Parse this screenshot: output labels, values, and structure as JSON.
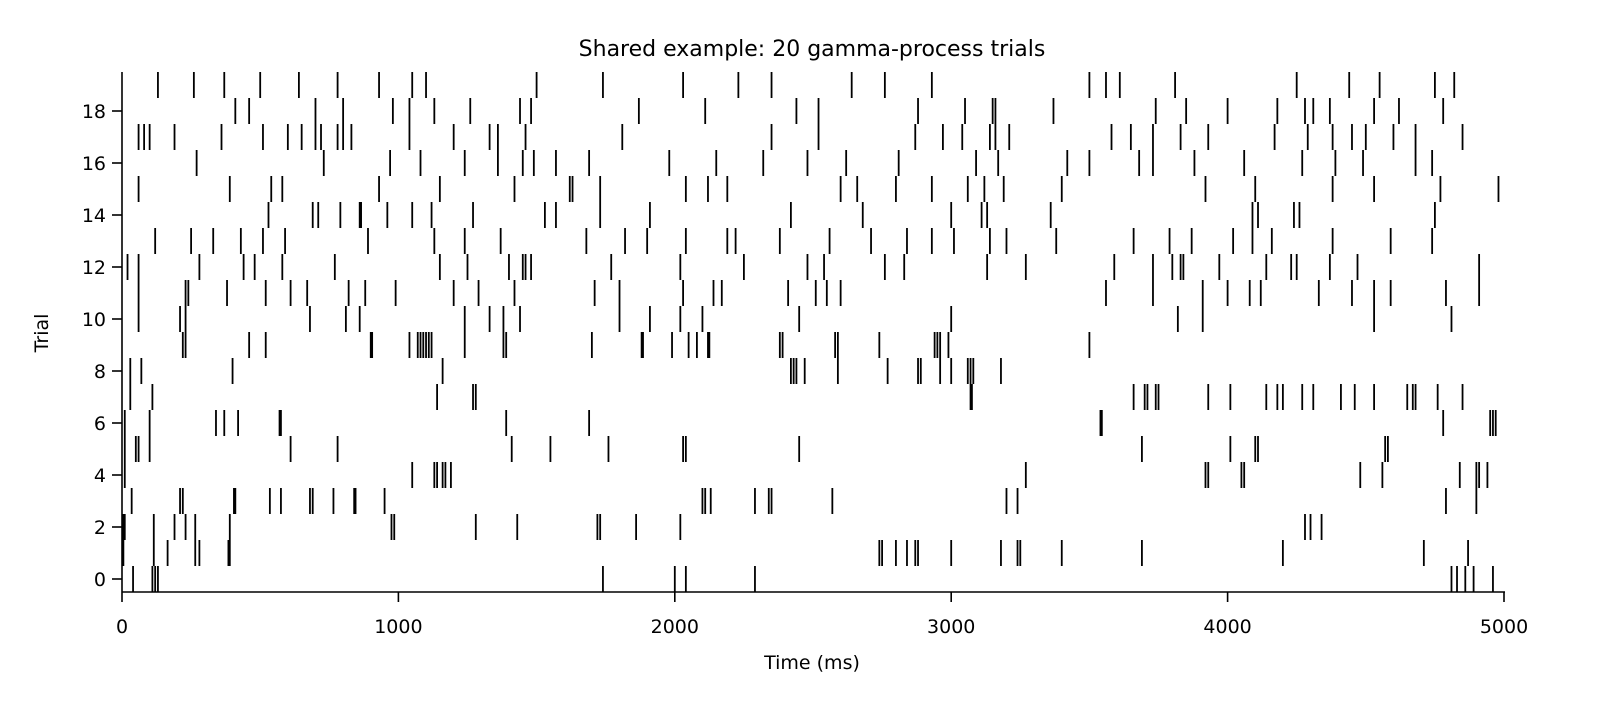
{
  "chart_data": {
    "type": "raster",
    "title": "Shared example: 20 gamma-process trials",
    "xlabel": "Time (ms)",
    "ylabel": "Trial",
    "xlim": [
      0,
      5000
    ],
    "ylim": [
      -0.5,
      19.5
    ],
    "xticks": [
      0,
      1000,
      2000,
      3000,
      4000,
      5000
    ],
    "yticks": [
      0,
      2,
      4,
      6,
      8,
      10,
      12,
      14,
      16,
      18
    ],
    "grid": false,
    "legend": null,
    "trials": [
      {
        "trial": 0,
        "spikes": [
          40,
          110,
          120,
          130,
          1740,
          2000,
          2040,
          2290,
          4810,
          4830,
          4860,
          4890,
          4960
        ]
      },
      {
        "trial": 1,
        "spikes": [
          5,
          115,
          165,
          265,
          280,
          385,
          390,
          2740,
          2750,
          2800,
          2840,
          2870,
          2880,
          3000,
          3180,
          3240,
          3250,
          3400,
          3690,
          4200,
          4710,
          4870
        ]
      },
      {
        "trial": 2,
        "spikes": [
          5,
          10,
          115,
          190,
          230,
          265,
          390,
          975,
          985,
          1280,
          1430,
          1720,
          1730,
          1860,
          2020,
          4280,
          4300,
          4340
        ]
      },
      {
        "trial": 3,
        "spikes": [
          35,
          210,
          220,
          405,
          410,
          535,
          575,
          680,
          690,
          765,
          840,
          845,
          950,
          2100,
          2110,
          2130,
          2290,
          2340,
          2350,
          2570,
          3200,
          3240,
          4790,
          4900
        ]
      },
      {
        "trial": 4,
        "spikes": [
          10,
          1050,
          1130,
          1140,
          1160,
          1170,
          1190,
          3270,
          3920,
          3930,
          4050,
          4060,
          4480,
          4560,
          4840,
          4900,
          4910,
          4940
        ]
      },
      {
        "trial": 5,
        "spikes": [
          10,
          50,
          60,
          100,
          610,
          780,
          1410,
          1550,
          1760,
          2030,
          2040,
          2450,
          3690,
          4010,
          4100,
          4110,
          4570,
          4580
        ]
      },
      {
        "trial": 6,
        "spikes": [
          10,
          100,
          340,
          370,
          420,
          570,
          575,
          1390,
          1690,
          3540,
          3545,
          4780,
          4950,
          4960,
          4970
        ]
      },
      {
        "trial": 7,
        "spikes": [
          30,
          110,
          1140,
          1270,
          1280,
          3070,
          3075,
          3660,
          3700,
          3710,
          3740,
          3750,
          3930,
          4010,
          4140,
          4180,
          4200,
          4270,
          4310,
          4410,
          4460,
          4530,
          4650,
          4670,
          4680,
          4760,
          4850
        ]
      },
      {
        "trial": 8,
        "spikes": [
          30,
          70,
          400,
          1160,
          2420,
          2430,
          2440,
          2470,
          2590,
          2770,
          2880,
          2890,
          2960,
          3000,
          3060,
          3070,
          3080,
          3180
        ]
      },
      {
        "trial": 9,
        "spikes": [
          220,
          230,
          460,
          520,
          900,
          905,
          1040,
          1070,
          1080,
          1090,
          1100,
          1110,
          1120,
          1240,
          1380,
          1390,
          1700,
          1880,
          1885,
          1990,
          2050,
          2080,
          2120,
          2125,
          2380,
          2390,
          2580,
          2590,
          2740,
          2940,
          2950,
          2960,
          2990,
          3500
        ]
      },
      {
        "trial": 10,
        "spikes": [
          60,
          210,
          230,
          680,
          810,
          860,
          1240,
          1330,
          1380,
          1440,
          1800,
          1910,
          2020,
          2100,
          2450,
          3000,
          3820,
          3910,
          4530,
          4810
        ]
      },
      {
        "trial": 11,
        "spikes": [
          60,
          230,
          240,
          380,
          520,
          610,
          670,
          820,
          880,
          990,
          1200,
          1290,
          1420,
          1710,
          1800,
          2030,
          2140,
          2170,
          2410,
          2510,
          2550,
          2600,
          3560,
          3730,
          3910,
          4000,
          4080,
          4120,
          4330,
          4450,
          4530,
          4590,
          4790,
          4910
        ]
      },
      {
        "trial": 12,
        "spikes": [
          20,
          60,
          280,
          440,
          480,
          580,
          770,
          1150,
          1250,
          1400,
          1450,
          1460,
          1480,
          1770,
          2020,
          2250,
          2480,
          2540,
          2760,
          2830,
          3130,
          3270,
          3590,
          3730,
          3800,
          3830,
          3840,
          3970,
          4140,
          4230,
          4250,
          4370,
          4470,
          4910
        ]
      },
      {
        "trial": 13,
        "spikes": [
          120,
          250,
          330,
          430,
          510,
          590,
          890,
          1130,
          1240,
          1370,
          1680,
          1820,
          1900,
          2040,
          2190,
          2220,
          2380,
          2560,
          2710,
          2840,
          2930,
          3010,
          3140,
          3200,
          3380,
          3660,
          3790,
          3870,
          4020,
          4090,
          4160,
          4380,
          4590,
          4740
        ]
      },
      {
        "trial": 14,
        "spikes": [
          530,
          690,
          710,
          790,
          860,
          865,
          960,
          1050,
          1120,
          1270,
          1530,
          1570,
          1730,
          1910,
          2420,
          2680,
          3000,
          3110,
          3130,
          3360,
          4090,
          4110,
          4240,
          4260,
          4750
        ]
      },
      {
        "trial": 15,
        "spikes": [
          60,
          390,
          540,
          580,
          930,
          1150,
          1420,
          1620,
          1630,
          1730,
          2040,
          2120,
          2190,
          2600,
          2660,
          2800,
          2930,
          3060,
          3120,
          3190,
          3400,
          3920,
          4100,
          4380,
          4530,
          4770,
          4980
        ]
      },
      {
        "trial": 16,
        "spikes": [
          270,
          730,
          970,
          1080,
          1240,
          1360,
          1450,
          1490,
          1570,
          1690,
          1980,
          2150,
          2320,
          2480,
          2620,
          2810,
          3090,
          3170,
          3420,
          3500,
          3680,
          3730,
          3880,
          4060,
          4270,
          4390,
          4490,
          4680,
          4740
        ]
      },
      {
        "trial": 17,
        "spikes": [
          60,
          80,
          100,
          190,
          360,
          510,
          600,
          650,
          700,
          720,
          780,
          800,
          830,
          1040,
          1200,
          1330,
          1360,
          1460,
          1810,
          2350,
          2520,
          2870,
          2970,
          3040,
          3140,
          3160,
          3210,
          3580,
          3650,
          3730,
          3830,
          3930,
          4170,
          4290,
          4380,
          4450,
          4500,
          4600,
          4680,
          4850
        ]
      },
      {
        "trial": 18,
        "spikes": [
          410,
          460,
          700,
          800,
          980,
          1040,
          1130,
          1260,
          1440,
          1480,
          1870,
          2110,
          2440,
          2520,
          2880,
          3050,
          3150,
          3160,
          3370,
          3740,
          3850,
          4000,
          4180,
          4280,
          4310,
          4370,
          4530,
          4620,
          4780
        ]
      },
      {
        "trial": 19,
        "spikes": [
          130,
          260,
          370,
          500,
          640,
          780,
          930,
          1050,
          1100,
          1500,
          1740,
          2030,
          2230,
          2350,
          2640,
          2760,
          2930,
          3500,
          3560,
          3610,
          3810,
          4250,
          4440,
          4550,
          4750,
          4820
        ]
      }
    ]
  }
}
